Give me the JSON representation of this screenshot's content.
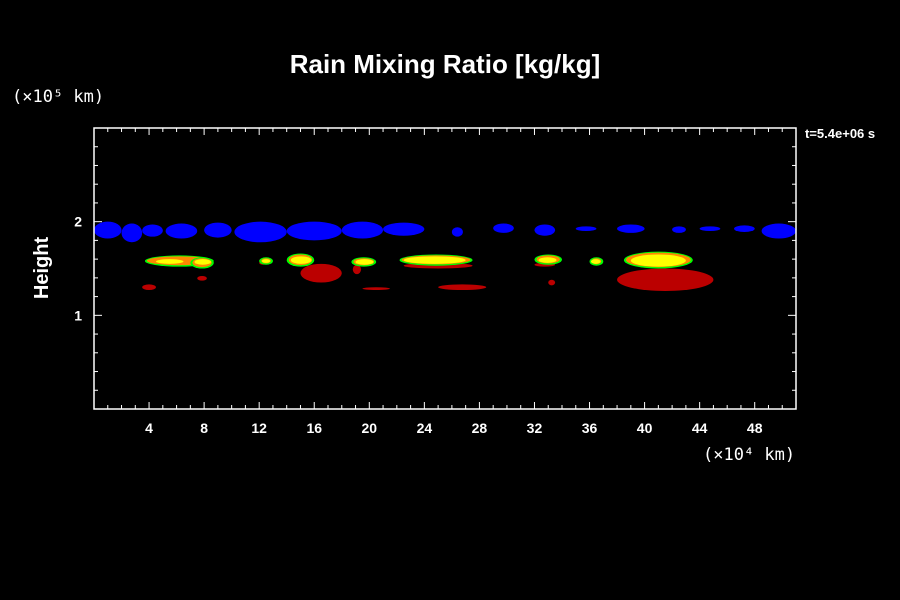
{
  "chart_data": {
    "type": "heatmap",
    "title": "Rain Mixing Ratio [kg/kg]",
    "ylabel": "Height",
    "y_unit_label": "(×10⁵ km)",
    "x_unit_label": "(×10⁴ km)",
    "time_label": "t=5.4e+06 s",
    "xlim": [
      0,
      51
    ],
    "ylim": [
      0,
      3
    ],
    "x_ticks": [
      4,
      8,
      12,
      16,
      20,
      24,
      28,
      32,
      36,
      40,
      44,
      48
    ],
    "y_ticks": [
      1,
      2
    ],
    "grid": false,
    "colors": {
      "background": "#000000",
      "axis": "#ffffff",
      "low": "#0000ff",
      "mid": "#00ff00",
      "high": "#ffff00",
      "peak": "#bb0000",
      "orange": "#ff8800"
    },
    "regions": {
      "blue_band": {
        "y_center": 1.92,
        "segments": [
          [
            0.0,
            2.0,
            1.82,
            2.0
          ],
          [
            2.0,
            3.5,
            1.78,
            1.98
          ],
          [
            3.5,
            5.0,
            1.84,
            1.97
          ],
          [
            5.2,
            7.5,
            1.82,
            1.98
          ],
          [
            8.0,
            10.0,
            1.83,
            1.99
          ],
          [
            10.2,
            14.0,
            1.78,
            2.0
          ],
          [
            14.0,
            18.0,
            1.8,
            2.0
          ],
          [
            18.0,
            21.0,
            1.82,
            2.0
          ],
          [
            21.0,
            24.0,
            1.85,
            1.99
          ],
          [
            26.0,
            26.8,
            1.84,
            1.94
          ],
          [
            29.0,
            30.5,
            1.88,
            1.98
          ],
          [
            32.0,
            33.5,
            1.85,
            1.97
          ],
          [
            35.0,
            36.5,
            1.9,
            1.95
          ],
          [
            38.0,
            40.0,
            1.88,
            1.97
          ],
          [
            42.0,
            43.0,
            1.88,
            1.95
          ],
          [
            44.0,
            45.5,
            1.9,
            1.95
          ],
          [
            46.5,
            48.0,
            1.89,
            1.96
          ],
          [
            48.5,
            51.0,
            1.82,
            1.98
          ]
        ]
      },
      "cells": [
        {
          "x": [
            3.7,
            8.7
          ],
          "y": [
            1.52,
            1.64
          ],
          "core": [
            4.5,
            6.5,
            1.55,
            1.6
          ]
        },
        {
          "x": [
            7.0,
            8.7
          ],
          "y": [
            1.5,
            1.62
          ],
          "core": [
            7.3,
            8.5,
            1.54,
            1.6
          ]
        },
        {
          "x": [
            12.0,
            13.0
          ],
          "y": [
            1.54,
            1.62
          ],
          "core": [
            12.2,
            12.8,
            1.56,
            1.6
          ]
        },
        {
          "x": [
            14.0,
            16.0
          ],
          "y": [
            1.52,
            1.66
          ],
          "core": [
            14.3,
            15.8,
            1.55,
            1.63
          ]
        },
        {
          "x": [
            18.7,
            20.5
          ],
          "y": [
            1.52,
            1.62
          ],
          "core": [
            19.0,
            20.3,
            1.54,
            1.6
          ]
        },
        {
          "x": [
            22.2,
            27.5
          ],
          "y": [
            1.53,
            1.65
          ],
          "core": [
            22.5,
            27.0,
            1.55,
            1.63
          ]
        },
        {
          "x": [
            32.0,
            34.0
          ],
          "y": [
            1.54,
            1.65
          ],
          "core": [
            32.3,
            33.6,
            1.56,
            1.62
          ]
        },
        {
          "x": [
            36.0,
            37.0
          ],
          "y": [
            1.53,
            1.62
          ],
          "core": [
            36.1,
            36.8,
            1.55,
            1.6
          ]
        },
        {
          "x": [
            38.5,
            43.5
          ],
          "y": [
            1.5,
            1.68
          ],
          "core": [
            39.0,
            43.0,
            1.52,
            1.65
          ]
        }
      ],
      "red_patches": [
        [
          3.5,
          4.5,
          1.27,
          1.33
        ],
        [
          7.5,
          8.2,
          1.37,
          1.42
        ],
        [
          12.0,
          12.5,
          1.54,
          1.58
        ],
        [
          15.0,
          18.0,
          1.35,
          1.55
        ],
        [
          18.8,
          19.4,
          1.44,
          1.54
        ],
        [
          19.5,
          21.5,
          1.27,
          1.3
        ],
        [
          22.5,
          27.5,
          1.5,
          1.56
        ],
        [
          25.0,
          28.5,
          1.27,
          1.33
        ],
        [
          33.0,
          33.5,
          1.32,
          1.38
        ],
        [
          32.0,
          33.5,
          1.52,
          1.56
        ],
        [
          38.0,
          45.0,
          1.26,
          1.5
        ]
      ]
    }
  }
}
